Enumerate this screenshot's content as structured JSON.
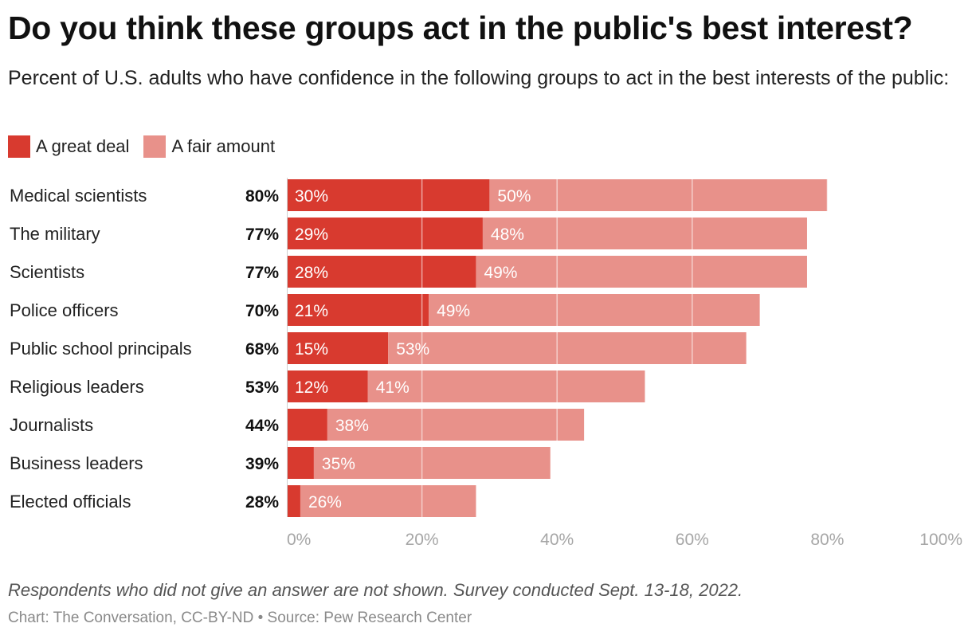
{
  "title": "Do you think these groups act in the public's best interest?",
  "subtitle": "Percent of U.S. adults who have confidence in the following groups to act in the best interests of the public:",
  "legend": [
    {
      "label": "A great deal",
      "color": "#d83a2f"
    },
    {
      "label": "A fair amount",
      "color": "#e8918a"
    }
  ],
  "note": "Respondents who did not give an answer are not shown. Survey conducted Sept. 13-18, 2022.",
  "credit": "Chart: The Conversation, CC-BY-ND • Source: Pew Research Center",
  "chart_data": {
    "type": "bar",
    "orientation": "horizontal",
    "stacked": true,
    "categories": [
      "Medical scientists",
      "The military",
      "Scientists",
      "Police officers",
      "Public school principals",
      "Religious leaders",
      "Journalists",
      "Business leaders",
      "Elected officials"
    ],
    "totals": [
      "80%",
      "77%",
      "77%",
      "70%",
      "68%",
      "53%",
      "44%",
      "39%",
      "28%"
    ],
    "series": [
      {
        "name": "A great deal",
        "color": "#d83a2f",
        "values": [
          30,
          29,
          28,
          21,
          15,
          12,
          6,
          4,
          2
        ],
        "labels": [
          "30%",
          "29%",
          "28%",
          "21%",
          "15%",
          "12%",
          "",
          "",
          ""
        ]
      },
      {
        "name": "A fair amount",
        "color": "#e8918a",
        "values": [
          50,
          48,
          49,
          49,
          53,
          41,
          38,
          35,
          26
        ],
        "labels": [
          "50%",
          "48%",
          "49%",
          "49%",
          "53%",
          "41%",
          "38%",
          "35%",
          "26%"
        ]
      }
    ],
    "xlim": [
      0,
      100
    ],
    "xticks": [
      "0%",
      "20%",
      "40%",
      "60%",
      "80%",
      "100%"
    ],
    "grid": true,
    "legend_position": "top-left"
  }
}
